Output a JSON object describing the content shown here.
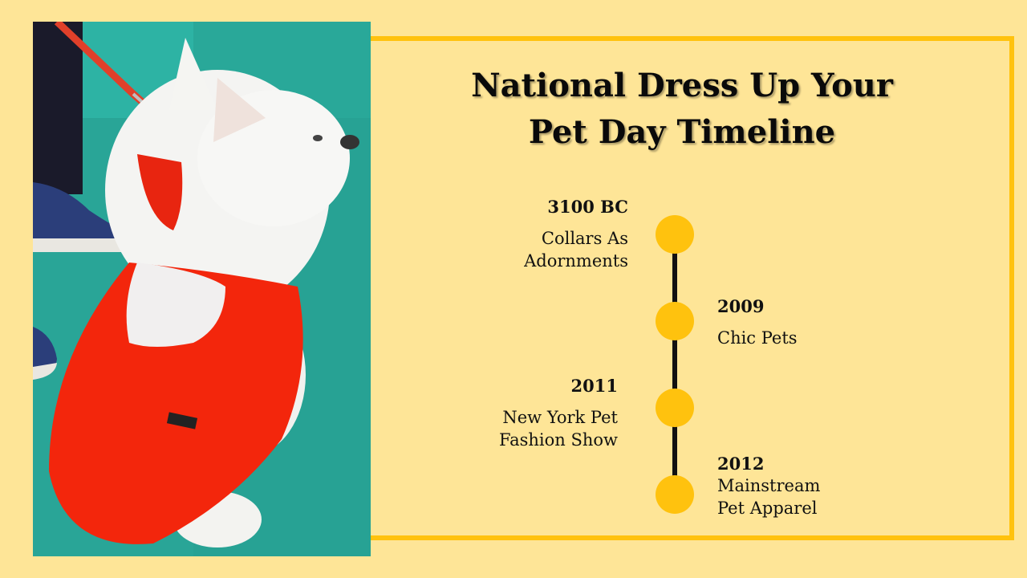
{
  "slide": {
    "title_line1": "National Dress Up Your",
    "title_line2": "Pet Day Timeline",
    "accent_color": "#FFC20E",
    "background_color": "#FEE597"
  },
  "timeline": [
    {
      "year": "3100 BC",
      "label_line1": "Collars As",
      "label_line2": "Adornments",
      "side": "left"
    },
    {
      "year": "2009",
      "label_line1": "Chic Pets",
      "label_line2": "",
      "side": "right"
    },
    {
      "year": "2011",
      "label_line1": "New York Pet",
      "label_line2": "Fashion Show",
      "side": "left"
    },
    {
      "year": "2012",
      "label_line1": "Mainstream",
      "label_line2": "Pet Apparel",
      "side": "right"
    }
  ],
  "photo": {
    "subject": "dog-photo"
  }
}
